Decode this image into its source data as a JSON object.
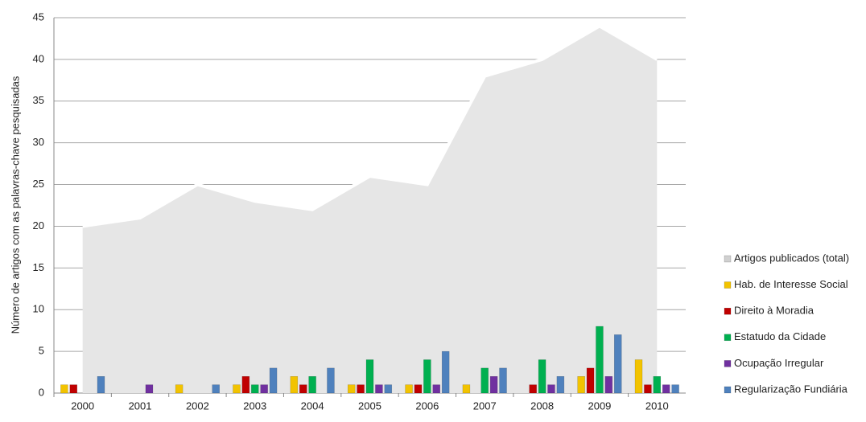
{
  "chart_data": {
    "type": "bar",
    "y_label": "Número de artigos com as palavras-chave pesquisadas",
    "categories": [
      "2000",
      "2001",
      "2002",
      "2003",
      "2004",
      "2005",
      "2006",
      "2007",
      "2008",
      "2009",
      "2010"
    ],
    "ylim": [
      0,
      45
    ],
    "yticks": [
      0,
      5,
      10,
      15,
      20,
      25,
      30,
      35,
      40,
      45
    ],
    "grid": true,
    "area": {
      "name": "Artigos publicados (total)",
      "color": "#e6e6e6",
      "values": [
        20,
        21,
        25,
        23,
        22,
        26,
        25,
        38,
        40,
        44,
        40
      ]
    },
    "series": [
      {
        "name": "Hab. de Interesse Social",
        "color": "#f2c300",
        "values": [
          1,
          0,
          1,
          1,
          2,
          1,
          1,
          1,
          0,
          2,
          4
        ]
      },
      {
        "name": "Direito à Moradia",
        "color": "#c00000",
        "values": [
          1,
          0,
          0,
          2,
          1,
          1,
          1,
          0,
          1,
          3,
          1
        ]
      },
      {
        "name": "Estatudo da Cidade",
        "color": "#00b050",
        "values": [
          0,
          0,
          0,
          1,
          2,
          4,
          4,
          3,
          4,
          8,
          2
        ]
      },
      {
        "name": "Ocupação Irregular",
        "color": "#7030a0",
        "values": [
          0,
          1,
          0,
          1,
          0,
          1,
          1,
          2,
          1,
          2,
          1
        ]
      },
      {
        "name": "Regularização Fundiária",
        "color": "#4f81bd",
        "values": [
          2,
          0,
          1,
          3,
          3,
          1,
          5,
          3,
          2,
          7,
          1
        ]
      }
    ]
  }
}
